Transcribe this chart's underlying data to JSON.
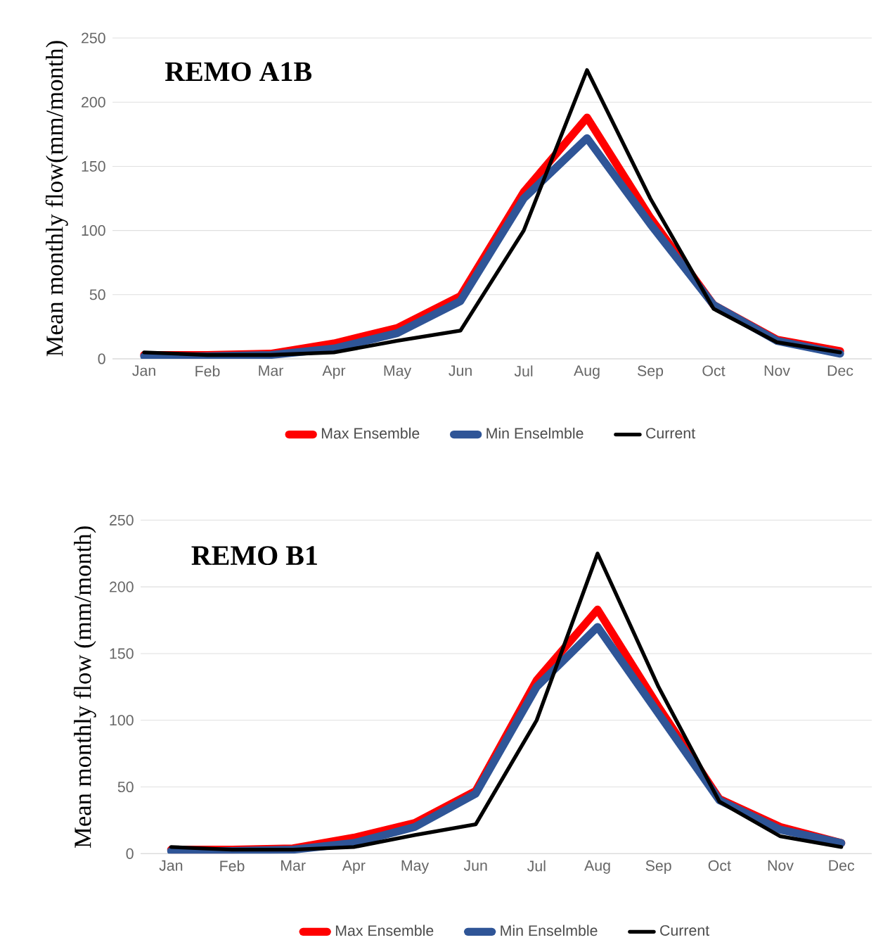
{
  "chart_data": [
    {
      "type": "line",
      "title": "REMO A1B",
      "ylabel": "Mean monthly flow(mm/month)",
      "categories": [
        "Jan",
        "Feb",
        "Mar",
        "Apr",
        "May",
        "Jun",
        "Jul",
        "Aug",
        "Sep",
        "Oct",
        "Nov",
        "Dec"
      ],
      "ylim": [
        0,
        250
      ],
      "yticks": [
        0,
        50,
        100,
        150,
        200,
        250
      ],
      "grid": "y",
      "legend": "bottom",
      "series": [
        {
          "name": "Max Ensemble",
          "color": "#ff0000",
          "values": [
            3,
            3,
            4,
            12,
            24,
            49,
            130,
            188,
            110,
            42,
            15,
            6
          ]
        },
        {
          "name": "Min Enselmble",
          "color": "#2f5597",
          "values": [
            2,
            2,
            3,
            8,
            20,
            45,
            125,
            172,
            105,
            42,
            14,
            4
          ]
        },
        {
          "name": "Current",
          "color": "#000000",
          "values": [
            5,
            3,
            3,
            5,
            14,
            22,
            100,
            225,
            125,
            39,
            13,
            5
          ]
        }
      ]
    },
    {
      "type": "line",
      "title": "REMO B1",
      "ylabel": "Mean monthly flow (mm/month)",
      "categories": [
        "Jan",
        "Feb",
        "Mar",
        "Apr",
        "May",
        "Jun",
        "Jul",
        "Aug",
        "Sep",
        "Oct",
        "Nov",
        "Dec"
      ],
      "ylim": [
        0,
        250
      ],
      "yticks": [
        0,
        50,
        100,
        150,
        200,
        250
      ],
      "grid": "y",
      "legend": "bottom",
      "series": [
        {
          "name": "Max Ensemble",
          "color": "#ff0000",
          "values": [
            3,
            3,
            4,
            12,
            23,
            47,
            130,
            183,
            110,
            41,
            20,
            8
          ]
        },
        {
          "name": "Min Enselmble",
          "color": "#2f5597",
          "values": [
            2,
            2,
            3,
            8,
            20,
            45,
            125,
            170,
            105,
            40,
            18,
            8
          ]
        },
        {
          "name": "Current",
          "color": "#000000",
          "values": [
            5,
            3,
            3,
            5,
            14,
            22,
            100,
            225,
            125,
            39,
            13,
            5
          ]
        }
      ]
    }
  ]
}
